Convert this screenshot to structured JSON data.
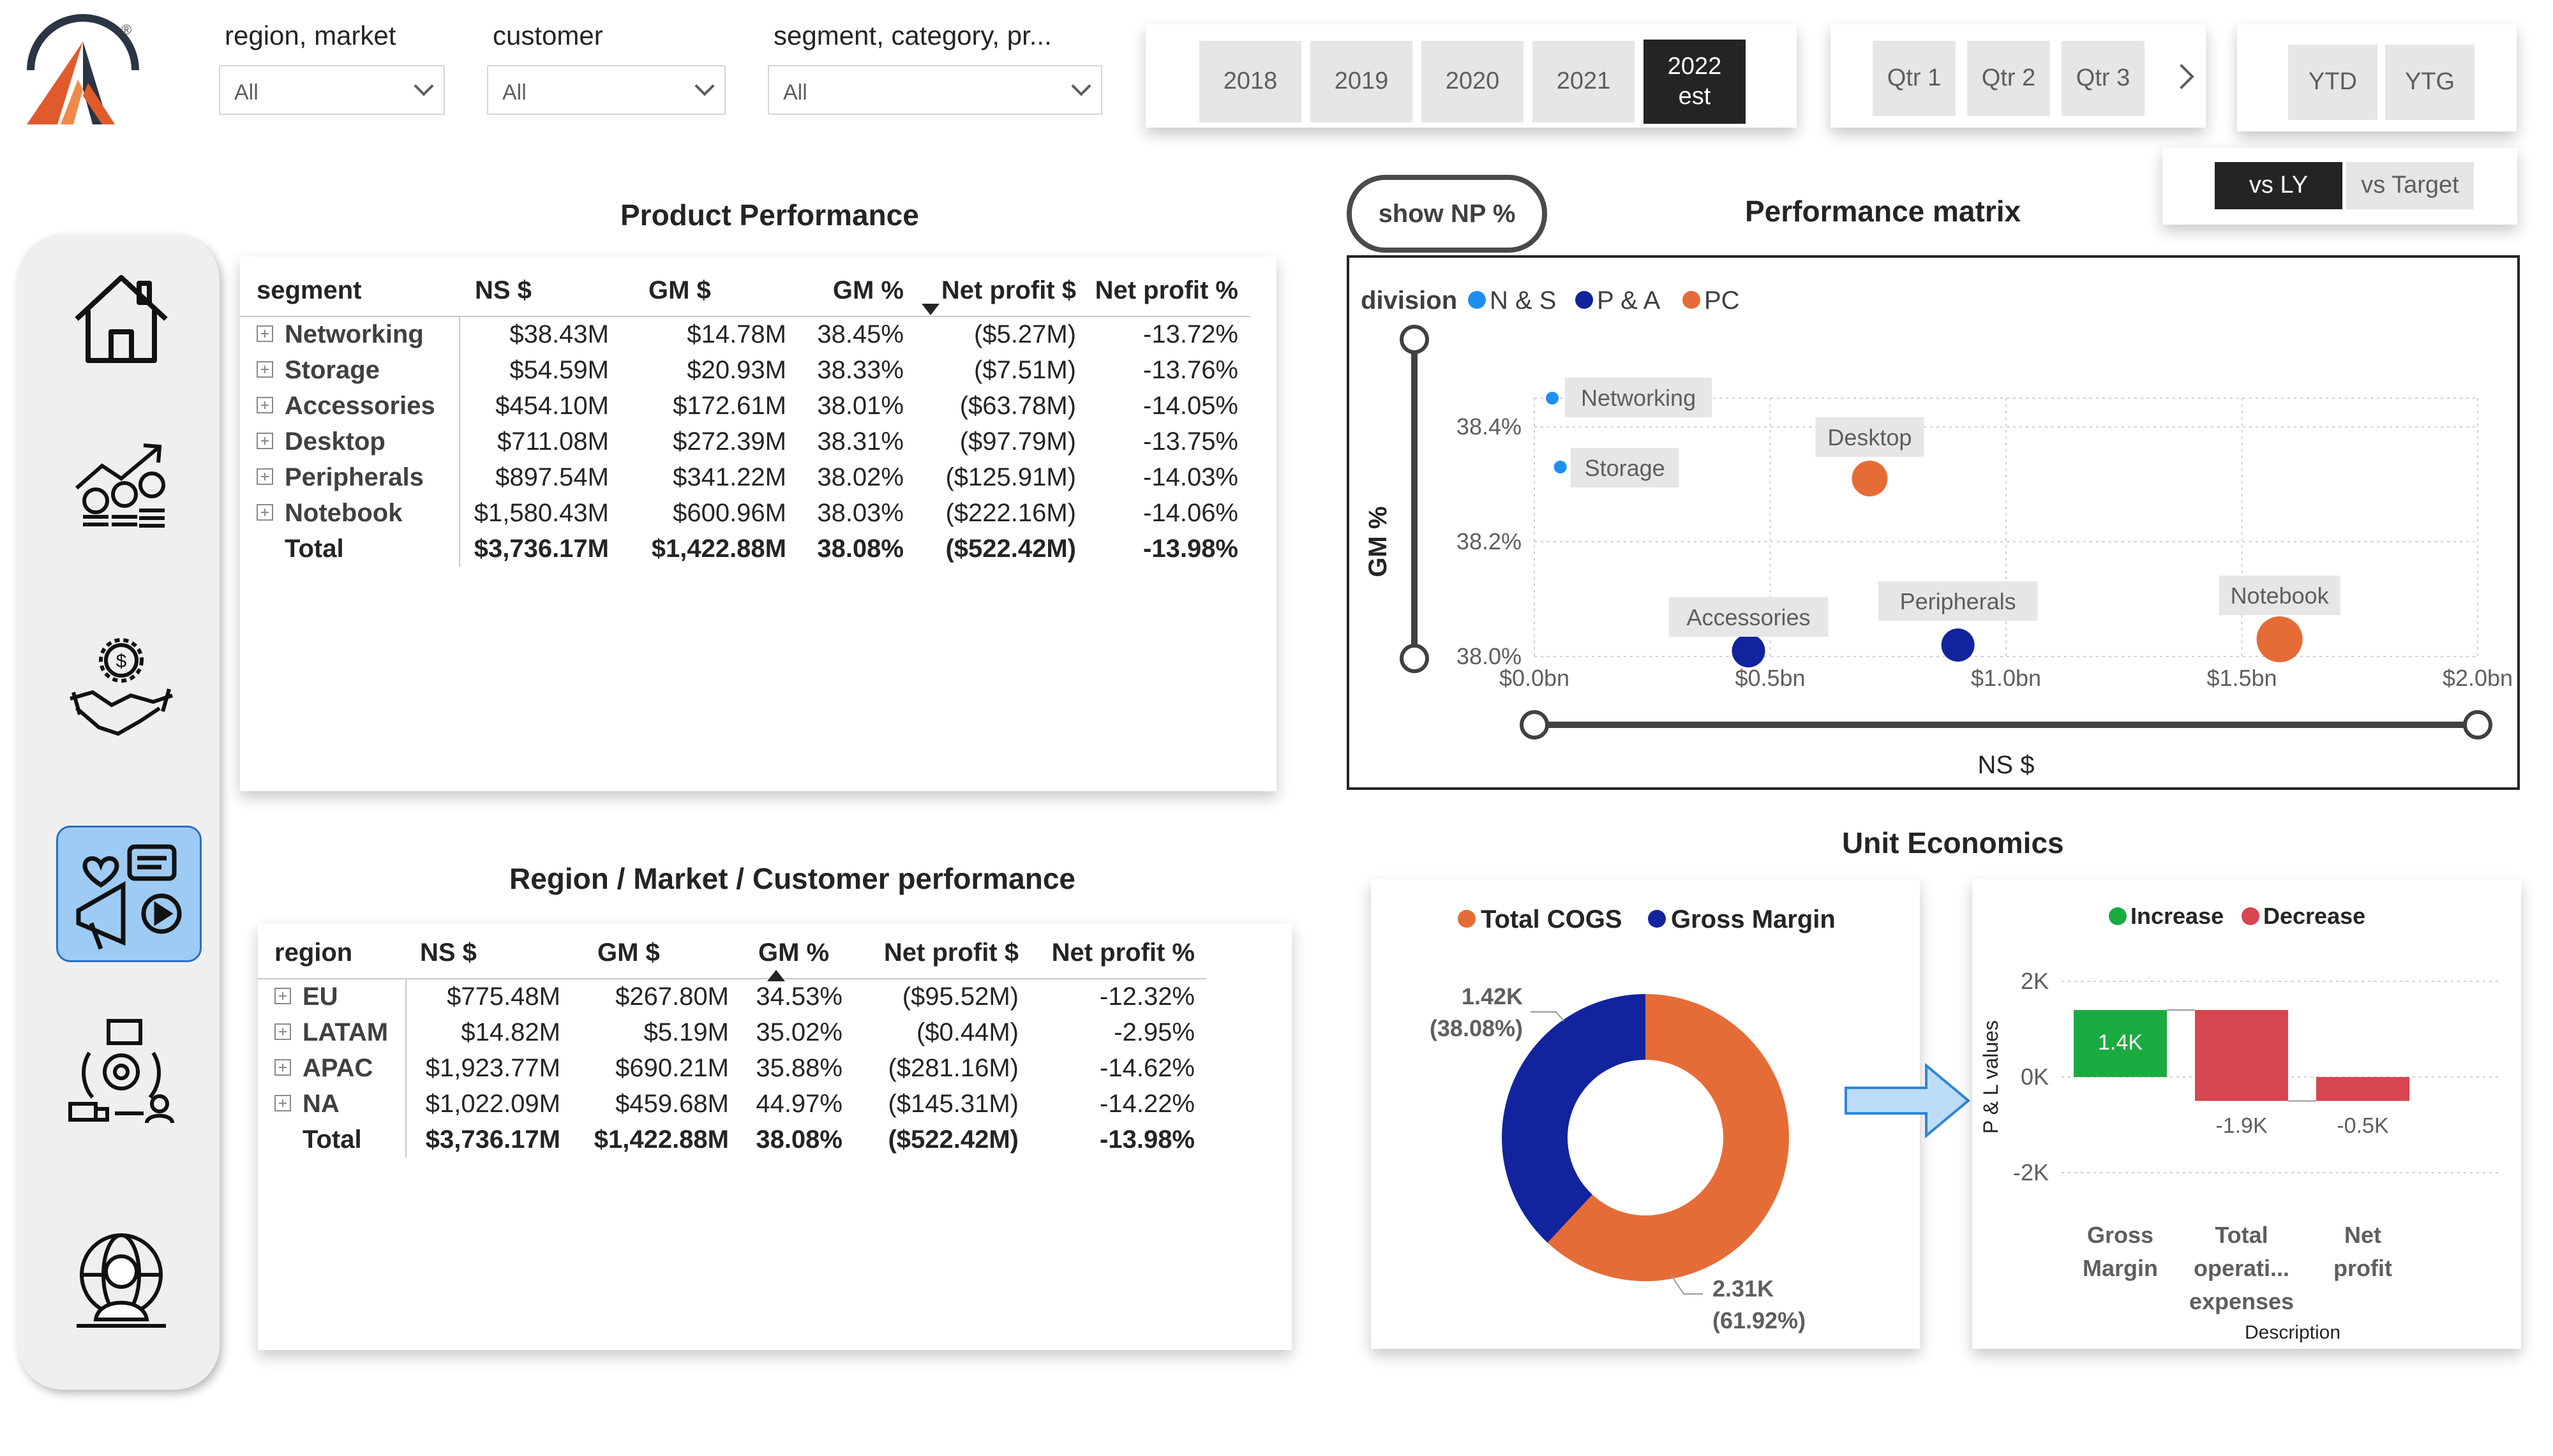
{
  "filters": {
    "region": {
      "label": "region, market",
      "value": "All"
    },
    "customer": {
      "label": "customer",
      "value": "All"
    },
    "segment": {
      "label": "segment, category, pr...",
      "value": "All"
    }
  },
  "years": [
    "2018",
    "2019",
    "2020",
    "2021"
  ],
  "year_selected": {
    "line1": "2022",
    "line2": "est"
  },
  "quarters": [
    "Qtr 1",
    "Qtr 2",
    "Qtr 3"
  ],
  "period": [
    "YTD",
    "YTG"
  ],
  "compare": {
    "selected": "vs LY",
    "other": "vs Target"
  },
  "show_np_button": "show NP %",
  "product_performance": {
    "title": "Product Performance",
    "headers": [
      "segment",
      "NS $",
      "GM $",
      "GM %",
      "Net profit $",
      "Net profit %"
    ],
    "rows": [
      [
        "Networking",
        "$38.43M",
        "$14.78M",
        "38.45%",
        "($5.27M)",
        "-13.72%"
      ],
      [
        "Storage",
        "$54.59M",
        "$20.93M",
        "38.33%",
        "($7.51M)",
        "-13.76%"
      ],
      [
        "Accessories",
        "$454.10M",
        "$172.61M",
        "38.01%",
        "($63.78M)",
        "-14.05%"
      ],
      [
        "Desktop",
        "$711.08M",
        "$272.39M",
        "38.31%",
        "($97.79M)",
        "-13.75%"
      ],
      [
        "Peripherals",
        "$897.54M",
        "$341.22M",
        "38.02%",
        "($125.91M)",
        "-14.03%"
      ],
      [
        "Notebook",
        "$1,580.43M",
        "$600.96M",
        "38.03%",
        "($222.16M)",
        "-14.06%"
      ]
    ],
    "total": [
      "Total",
      "$3,736.17M",
      "$1,422.88M",
      "38.08%",
      "($522.42M)",
      "-13.98%"
    ]
  },
  "region_performance": {
    "title": "Region / Market / Customer performance",
    "headers": [
      "region",
      "NS $",
      "GM $",
      "GM %",
      "Net profit $",
      "Net profit %"
    ],
    "rows": [
      [
        "EU",
        "$775.48M",
        "$267.80M",
        "34.53%",
        "($95.52M)",
        "-12.32%"
      ],
      [
        "LATAM",
        "$14.82M",
        "$5.19M",
        "35.02%",
        "($0.44M)",
        "-2.95%"
      ],
      [
        "APAC",
        "$1,923.77M",
        "$690.21M",
        "35.88%",
        "($281.16M)",
        "-14.62%"
      ],
      [
        "NA",
        "$1,022.09M",
        "$459.68M",
        "44.97%",
        "($145.31M)",
        "-14.22%"
      ]
    ],
    "total": [
      "Total",
      "$3,736.17M",
      "$1,422.88M",
      "38.08%",
      "($522.42M)",
      "-13.98%"
    ]
  },
  "unit_economics_title": "Unit Economics",
  "colors": {
    "ns": "#1f8ef1",
    "pa": "#12239e",
    "pc": "#e66c37",
    "increase": "#1aab40",
    "decrease": "#d64550",
    "dark": "#252423"
  },
  "chart_data": [
    {
      "type": "scatter",
      "title": "Performance matrix",
      "legend_title": "division",
      "legend": [
        "N & S",
        "P & A",
        "PC"
      ],
      "xlabel": "NS $",
      "ylabel": "GM %",
      "x_ticks": [
        "$0.0bn",
        "$0.5bn",
        "$1.0bn",
        "$1.5bn",
        "$2.0bn"
      ],
      "y_ticks": [
        "38.0%",
        "38.2%",
        "38.4%"
      ],
      "xlim": [
        0,
        2.0
      ],
      "ylim": [
        38.0,
        38.45
      ],
      "points": [
        {
          "label": "Networking",
          "division": "N & S",
          "x": 0.038,
          "y": 38.45
        },
        {
          "label": "Storage",
          "division": "N & S",
          "x": 0.055,
          "y": 38.33
        },
        {
          "label": "Desktop",
          "division": "PC",
          "x": 0.711,
          "y": 38.31
        },
        {
          "label": "Accessories",
          "division": "P & A",
          "x": 0.454,
          "y": 38.01
        },
        {
          "label": "Peripherals",
          "division": "P & A",
          "x": 0.898,
          "y": 38.02
        },
        {
          "label": "Notebook",
          "division": "PC",
          "x": 1.58,
          "y": 38.03
        }
      ]
    },
    {
      "type": "pie",
      "legend": [
        "Total COGS",
        "Gross Margin"
      ],
      "slices": [
        {
          "name": "Total COGS",
          "value": 2.31,
          "label": "2.31K",
          "pct": "(61.92%)"
        },
        {
          "name": "Gross Margin",
          "value": 1.42,
          "label": "1.42K",
          "pct": "(38.08%)"
        }
      ]
    },
    {
      "type": "bar",
      "subtype": "waterfall",
      "legend": [
        "Increase",
        "Decrease"
      ],
      "ylabel": "P & L values",
      "xlabel": "Description",
      "y_ticks": [
        "2K",
        "0K",
        "-2K"
      ],
      "ylim": [
        -2.4,
        2.4
      ],
      "categories": [
        [
          "Gross",
          "Margin"
        ],
        [
          "Total",
          "operati...",
          "expenses"
        ],
        [
          "Net",
          "profit"
        ]
      ],
      "steps": [
        {
          "start": 0,
          "end": 1.4,
          "kind": "Increase",
          "label": "1.4K"
        },
        {
          "start": 1.4,
          "end": -0.5,
          "kind": "Decrease",
          "label": "-1.9K"
        },
        {
          "start": 0,
          "end": -0.5,
          "kind": "Decrease",
          "label": "-0.5K"
        }
      ]
    }
  ]
}
